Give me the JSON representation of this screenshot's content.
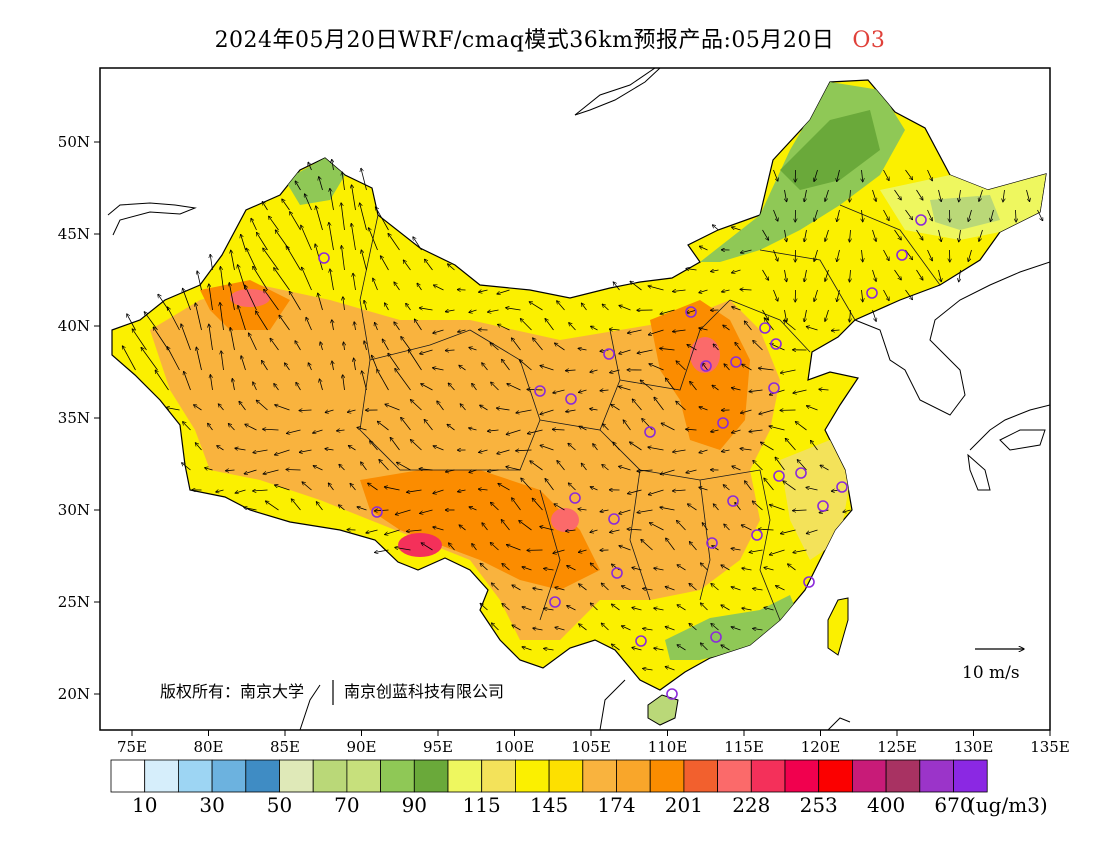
{
  "title": {
    "main": "2024年05月20日WRF/cmaq模式36km预报产品:05月20日",
    "pollutant": "O3"
  },
  "axes": {
    "lon_labels": [
      "75E",
      "80E",
      "85E",
      "90E",
      "95E",
      "100E",
      "105E",
      "110E",
      "115E",
      "120E",
      "125E",
      "130E",
      "135E"
    ],
    "lat_labels": [
      "20N",
      "25N",
      "30N",
      "35N",
      "40N",
      "45N",
      "50N"
    ]
  },
  "copyright": {
    "text": "版权所有：南京大学",
    "text2": "南京创蓝科技有限公司"
  },
  "wind_reference": {
    "label": "10 m/s"
  },
  "legend": {
    "colors": [
      "#ffffff",
      "#d6eefb",
      "#9dd5f3",
      "#6cb2df",
      "#3f8cc4",
      "#dfe9b8",
      "#bad878",
      "#c7e07c",
      "#8fc856",
      "#6aa93a",
      "#eef75f",
      "#f3e25a",
      "#fbf000",
      "#fde000",
      "#f9b33e",
      "#f9a62a",
      "#fb8c00",
      "#f2602e",
      "#fb6a6a",
      "#f4305a",
      "#f1004e",
      "#fb0000",
      "#c81b78",
      "#a83262",
      "#9b34c9",
      "#8b28e3"
    ],
    "labels": [
      "10",
      "30",
      "50",
      "70",
      "90",
      "115",
      "145",
      "174",
      "201",
      "228",
      "253",
      "400",
      "670"
    ],
    "unit": "(ug/m3)"
  },
  "colors": {
    "frame": "#000000",
    "station_marker": "#8b2bd9",
    "pollutant_title": "#e0413a"
  }
}
